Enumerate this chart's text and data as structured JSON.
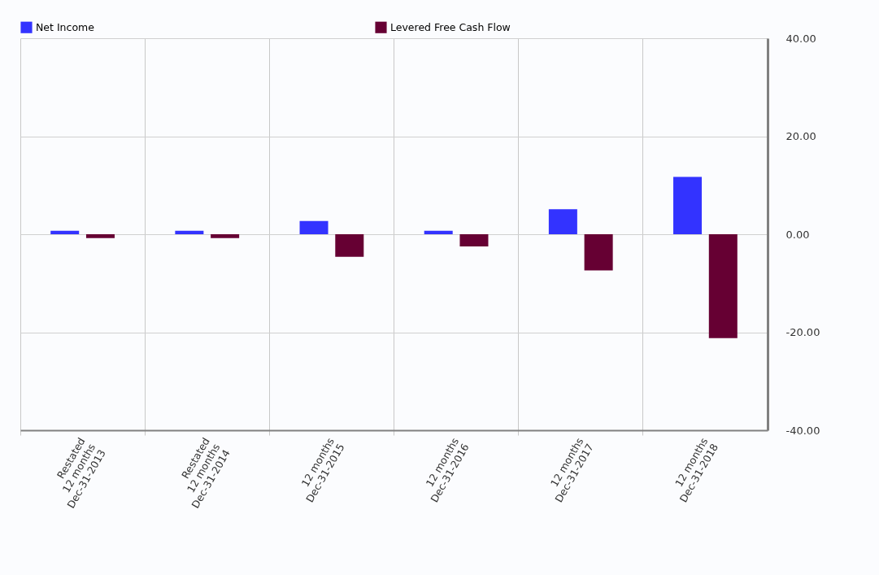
{
  "chart_data": {
    "type": "bar",
    "categories": [
      "Restated\n12 months\nDec-31-2013",
      "Restated\n12 months\nDec-31-2014",
      "12 months\nDec-31-2015",
      "12 months\nDec-31-2016",
      "12 months\nDec-31-2017",
      "12 months\nDec-31-2018"
    ],
    "series": [
      {
        "name": "Net Income",
        "color": "#3333ff",
        "values": [
          0.7,
          0.7,
          2.7,
          0.7,
          5.1,
          11.7
        ]
      },
      {
        "name": "Levered Free Cash Flow",
        "color": "#660033",
        "values": [
          -0.8,
          -0.8,
          -4.6,
          -2.5,
          -7.4,
          -21.2
        ]
      }
    ],
    "ylim": [
      -40,
      40
    ],
    "yticks": [
      {
        "value": -40,
        "label": "-40.00"
      },
      {
        "value": -20,
        "label": "-20.00"
      },
      {
        "value": 0,
        "label": "0.00"
      },
      {
        "value": 20,
        "label": "20.00"
      },
      {
        "value": 40,
        "label": "40.00"
      }
    ],
    "grid": true,
    "legend": "top"
  }
}
